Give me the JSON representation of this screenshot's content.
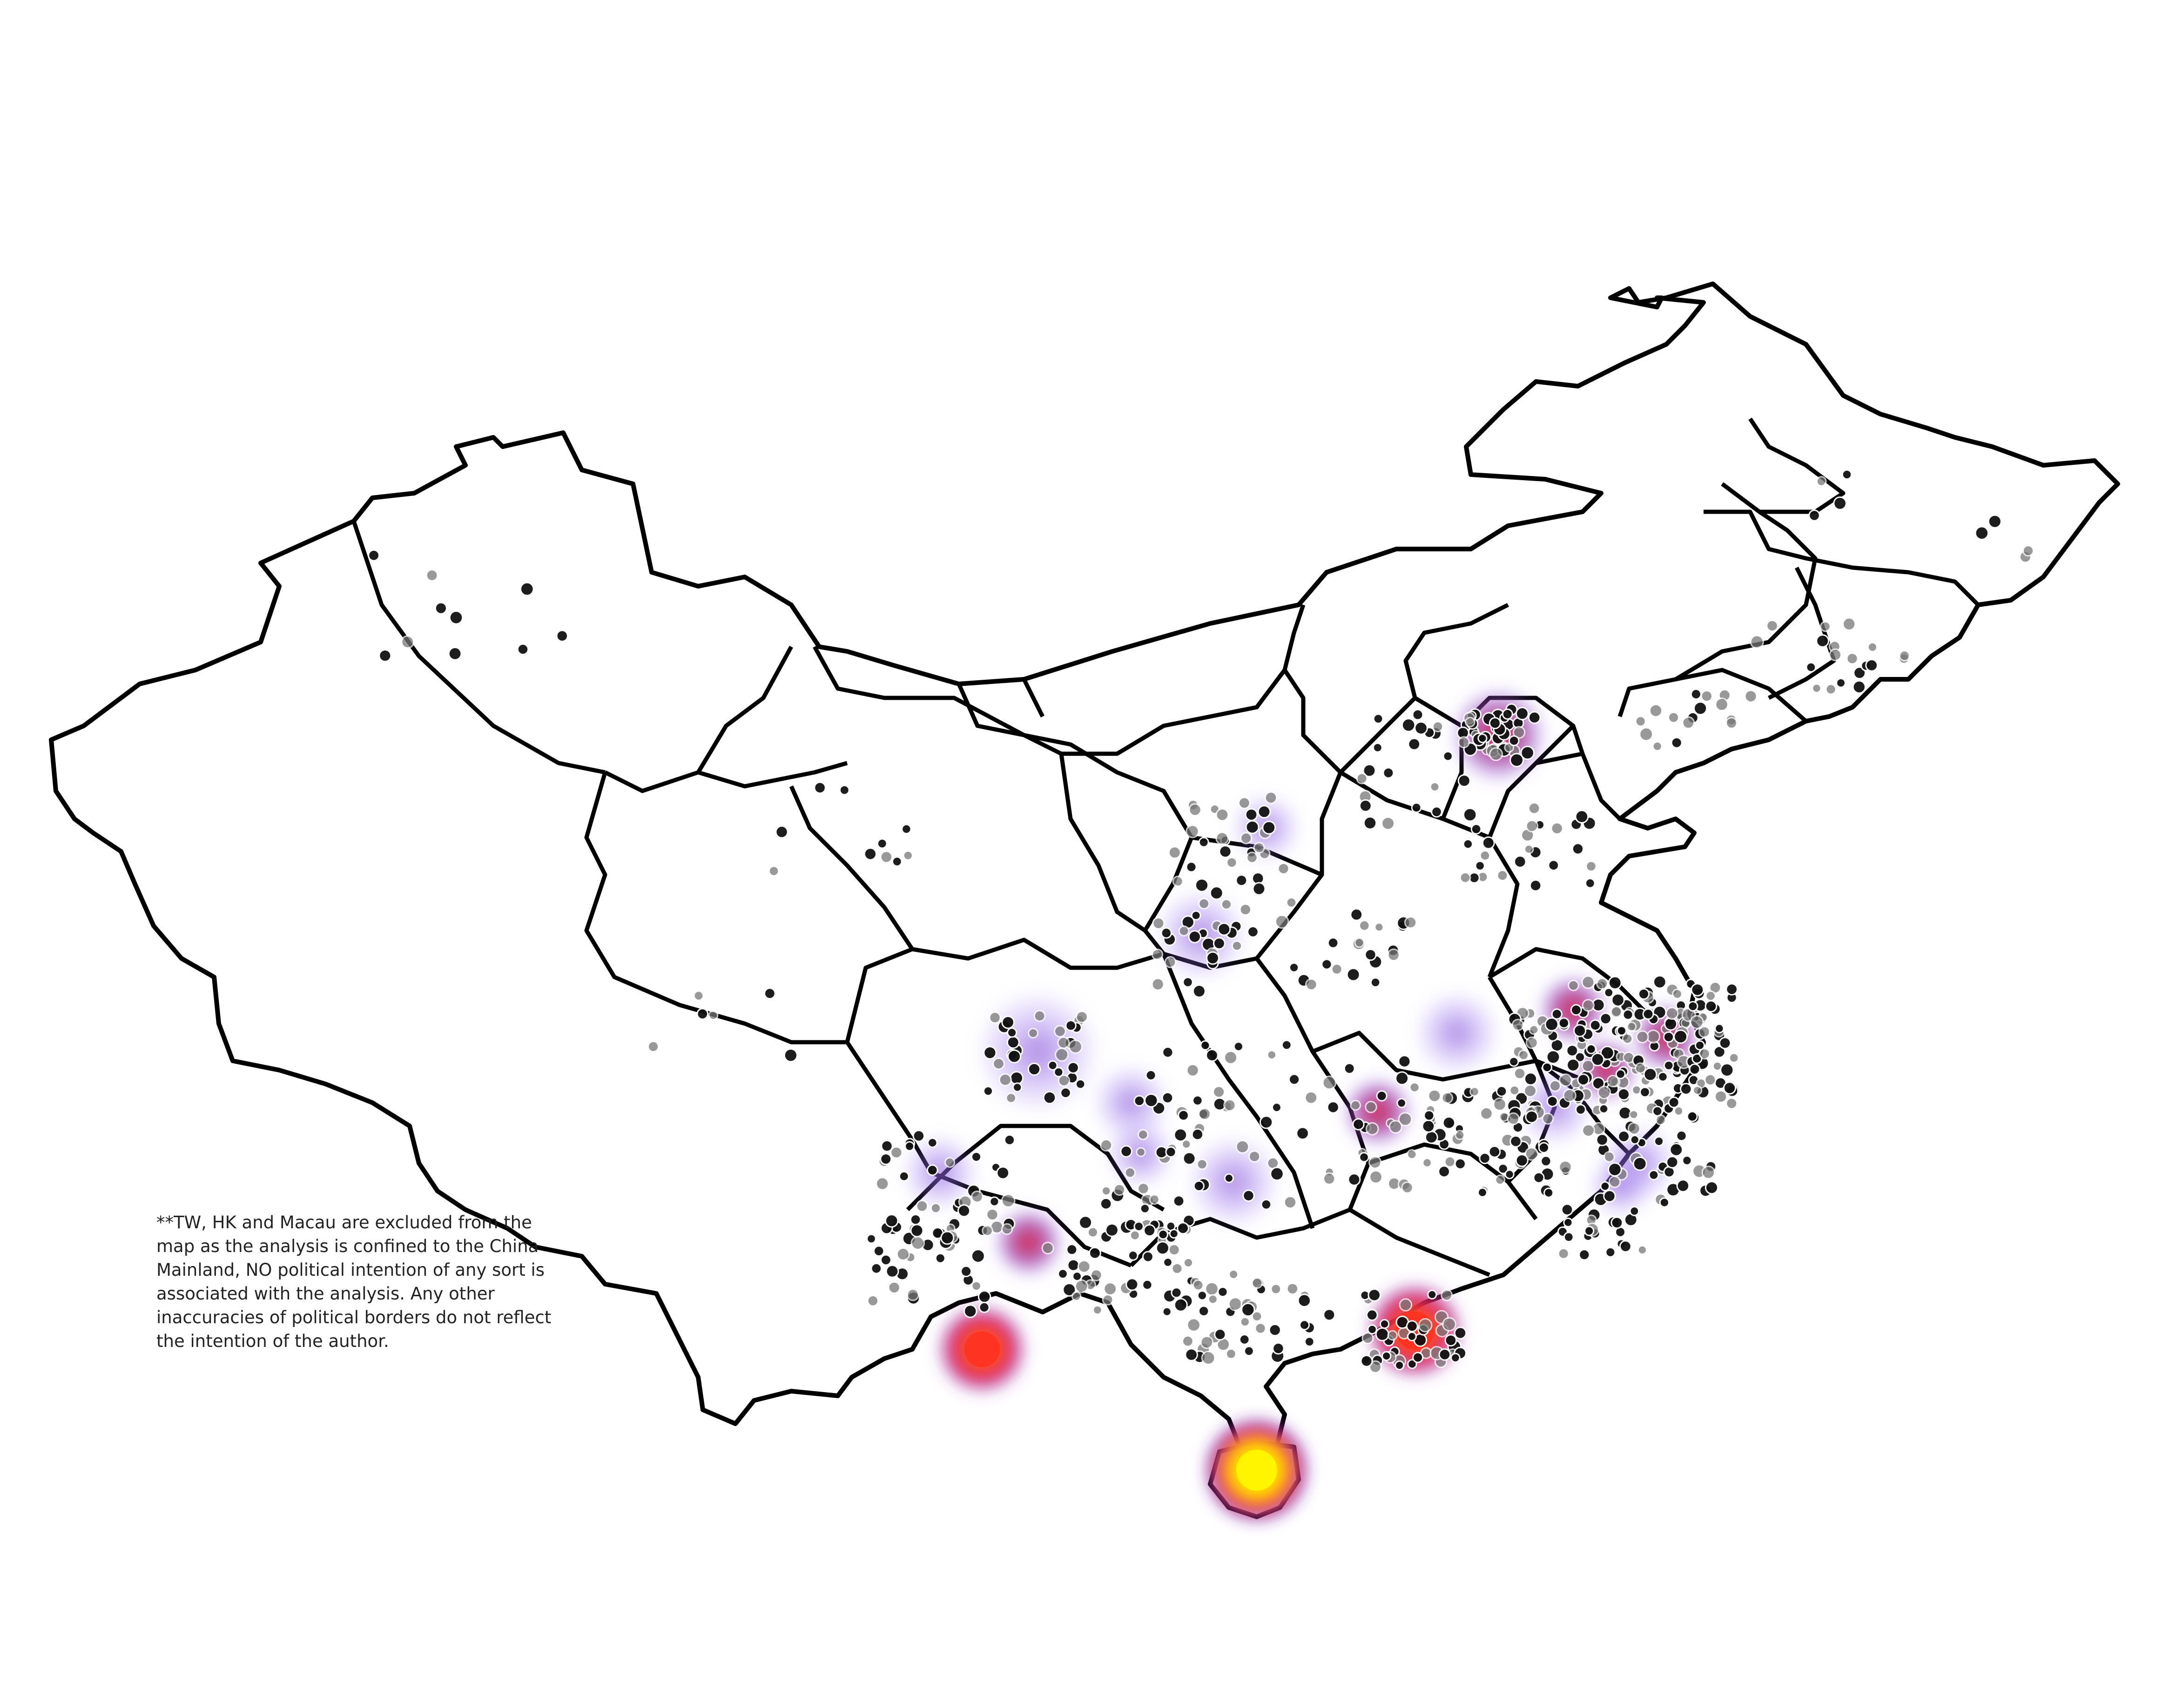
{
  "disclaimer": "**TW, HK and Macau are excluded from the map as the analysis is confined to the China Mainland, NO political intention of any sort is associated with the analysis. Any other inaccuracies of political borders do not reflect the intention of the author.",
  "colors": {
    "border": "#000000",
    "background": "#ffffff",
    "heat_low": "#7b5cff",
    "heat_mid": "#d6204a",
    "heat_high": "#ff3a1a",
    "heat_peak": "#fff200",
    "point_dark": "#111111",
    "point_grey": "#777777"
  },
  "heat_scale": "low → high intensity: purple → red → yellow"
}
